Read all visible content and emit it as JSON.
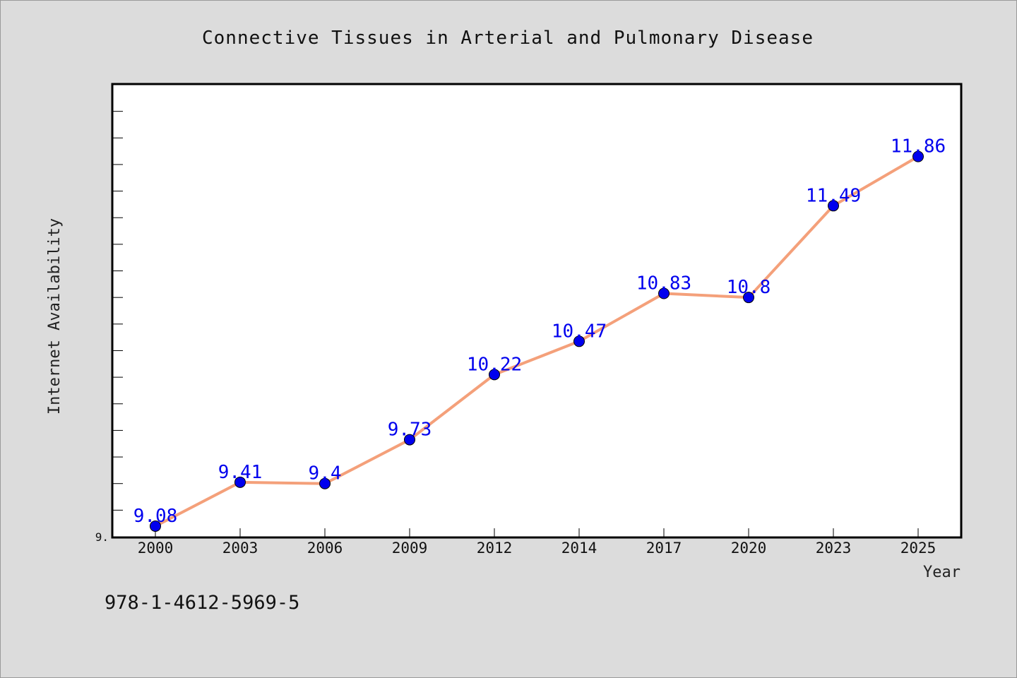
{
  "chart_data": {
    "type": "line",
    "title": "Connective Tissues in Arterial and Pulmonary Disease",
    "xlabel": "Year",
    "ylabel": "Internet Availability",
    "categories": [
      "2000",
      "2003",
      "2006",
      "2009",
      "2012",
      "2014",
      "2017",
      "2020",
      "2023",
      "2025"
    ],
    "series": [
      {
        "values": [
          9.08,
          9.41,
          9.4,
          9.73,
          10.22,
          10.47,
          10.83,
          10.8,
          11.49,
          11.86
        ],
        "data_labels": [
          "9.08",
          "9.41",
          "9.4",
          "9.73",
          "10.22",
          "10.47",
          "10.83",
          "10.8",
          "11.49",
          "11.86"
        ],
        "line_color": "#f4a07a",
        "marker_color": "#0000ee"
      }
    ],
    "ylim": [
      9.0,
      12.4
    ],
    "y_tick_labels": [
      "9."
    ],
    "grid": false,
    "plot_background": "#ffffff"
  },
  "footer": {
    "isbn": "978-1-4612-5969-5"
  }
}
